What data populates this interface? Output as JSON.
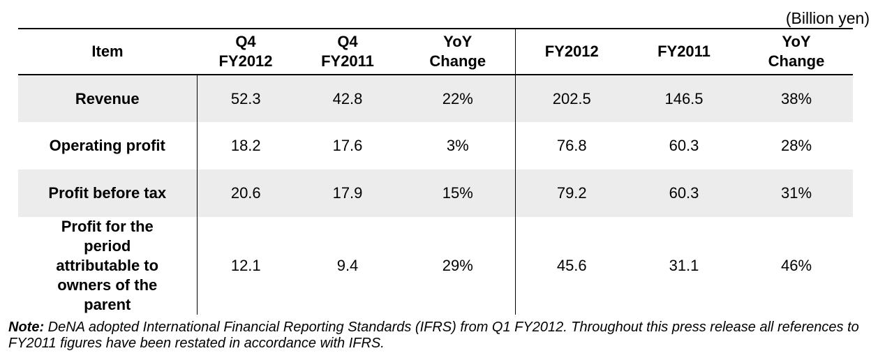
{
  "unit_label": "(Billion yen)",
  "header": {
    "item": "Item",
    "q4_fy2012": [
      "Q4",
      "FY2012"
    ],
    "q4_fy2011": [
      "Q4",
      "FY2011"
    ],
    "yoy_q4": [
      "YoY",
      "Change"
    ],
    "fy2012": "FY2012",
    "fy2011": "FY2011",
    "yoy_fy": [
      "YoY",
      "Change"
    ]
  },
  "rows": [
    {
      "item": [
        "Revenue"
      ],
      "values": [
        "52.3",
        "42.8",
        "22%",
        "202.5",
        "146.5",
        "38%"
      ]
    },
    {
      "item": [
        "Operating profit"
      ],
      "values": [
        "18.2",
        "17.6",
        "3%",
        "76.8",
        "60.3",
        "28%"
      ]
    },
    {
      "item": [
        "Profit before tax"
      ],
      "values": [
        "20.6",
        "17.9",
        "15%",
        "79.2",
        "60.3",
        "31%"
      ]
    },
    {
      "item": [
        "Profit for the",
        "period",
        "attributable to",
        "owners of the",
        "parent"
      ],
      "values": [
        "12.1",
        "9.4",
        "29%",
        "45.6",
        "31.1",
        "46%"
      ]
    }
  ],
  "note": {
    "label": "Note:",
    "text": " DeNA adopted International Financial Reporting Standards (IFRS) from Q1 FY2012. Throughout this press release all references to FY2011 figures have been restated in accordance with IFRS."
  }
}
